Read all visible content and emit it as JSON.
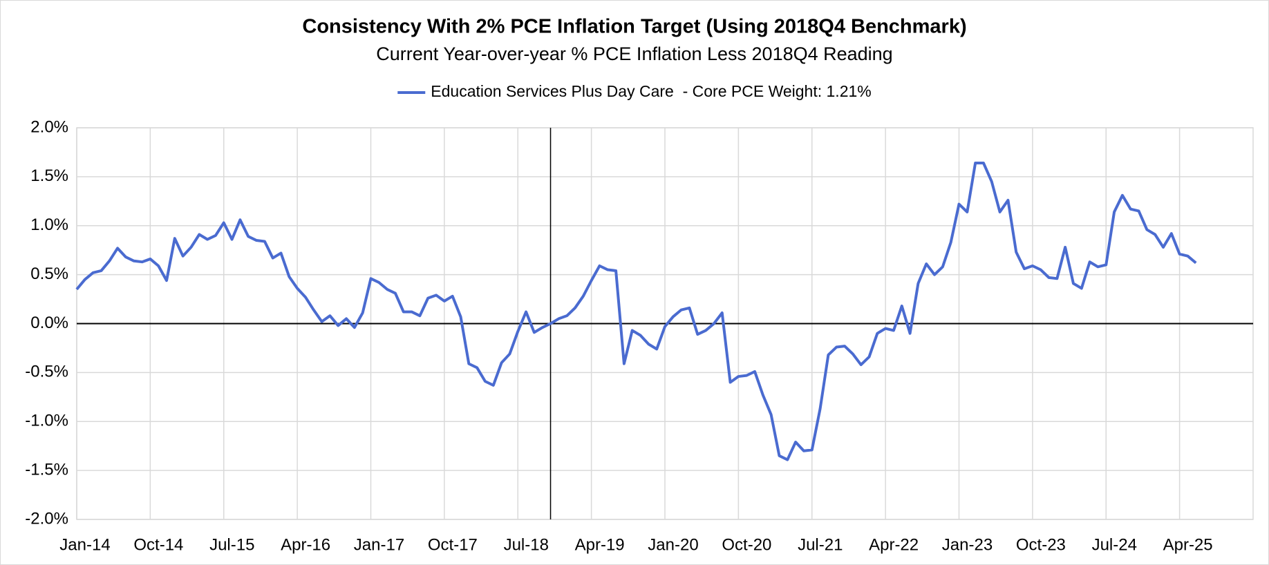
{
  "chart_data": {
    "type": "line",
    "title": "Consistency With 2% PCE Inflation Target (Using 2018Q4 Benchmark)",
    "subtitle": "Current Year-over-year % PCE Inflation Less 2018Q4 Reading",
    "legend": "top",
    "grid": true,
    "vline_index": 58,
    "categories": [
      "Jan-14",
      null,
      null,
      null,
      null,
      null,
      null,
      null,
      null,
      "Oct-14",
      null,
      null,
      null,
      null,
      null,
      null,
      null,
      null,
      "Jul-15",
      null,
      null,
      null,
      null,
      null,
      null,
      null,
      null,
      "Apr-16",
      null,
      null,
      null,
      null,
      null,
      null,
      null,
      null,
      "Jan-17",
      null,
      null,
      null,
      null,
      null,
      null,
      null,
      null,
      "Oct-17",
      null,
      null,
      null,
      null,
      null,
      null,
      null,
      null,
      "Jul-18",
      null,
      null,
      null,
      null,
      null,
      null,
      null,
      null,
      "Apr-19",
      null,
      null,
      null,
      null,
      null,
      null,
      null,
      null,
      "Jan-20",
      null,
      null,
      null,
      null,
      null,
      null,
      null,
      null,
      "Oct-20",
      null,
      null,
      null,
      null,
      null,
      null,
      null,
      null,
      "Jul-21",
      null,
      null,
      null,
      null,
      null,
      null,
      null,
      null,
      "Apr-22",
      null,
      null,
      null,
      null,
      null,
      null,
      null,
      null,
      "Jan-23",
      null,
      null,
      null,
      null,
      null,
      null,
      null,
      null,
      "Oct-23",
      null,
      null,
      null,
      null,
      null,
      null,
      null,
      null,
      "Jul-24",
      null,
      null,
      null,
      null,
      null,
      null,
      null,
      null,
      "Apr-25",
      null,
      null,
      null,
      null,
      null,
      null,
      null,
      null
    ],
    "series": [
      {
        "name": "Education Services Plus Day Care  - Core PCE Weight: 1.21%",
        "color": "#4a6bd0",
        "values": [
          0.35,
          0.45,
          0.52,
          0.54,
          0.64,
          0.77,
          0.68,
          0.64,
          0.63,
          0.66,
          0.59,
          0.44,
          0.87,
          0.69,
          0.78,
          0.91,
          0.86,
          0.9,
          1.03,
          0.86,
          1.06,
          0.89,
          0.85,
          0.84,
          0.67,
          0.72,
          0.48,
          0.36,
          0.27,
          0.14,
          0.02,
          0.08,
          -0.02,
          0.05,
          -0.04,
          0.11,
          0.46,
          0.42,
          0.35,
          0.31,
          0.12,
          0.12,
          0.08,
          0.26,
          0.29,
          0.23,
          0.28,
          0.07,
          -0.41,
          -0.45,
          -0.59,
          -0.63,
          -0.4,
          -0.31,
          -0.08,
          0.12,
          -0.09,
          -0.04,
          0.0,
          0.05,
          0.08,
          0.16,
          0.28,
          0.44,
          0.59,
          0.55,
          0.54,
          -0.41,
          -0.07,
          -0.12,
          -0.21,
          -0.26,
          -0.03,
          0.07,
          0.14,
          0.16,
          -0.11,
          -0.07,
          0.0,
          0.11,
          -0.6,
          -0.54,
          -0.53,
          -0.49,
          -0.73,
          -0.93,
          -1.35,
          -1.39,
          -1.21,
          -1.3,
          -1.29,
          -0.87,
          -0.32,
          -0.24,
          -0.23,
          -0.31,
          -0.42,
          -0.34,
          -0.1,
          -0.05,
          -0.07,
          0.18,
          -0.1,
          0.41,
          0.61,
          0.5,
          0.58,
          0.83,
          1.22,
          1.14,
          1.64,
          1.64,
          1.45,
          1.14,
          1.26,
          0.73,
          0.56,
          0.59,
          0.55,
          0.47,
          0.46,
          0.78,
          0.41,
          0.36,
          0.63,
          0.58,
          0.6,
          1.14,
          1.31,
          1.17,
          1.15,
          0.96,
          0.91,
          0.78,
          0.92,
          0.71,
          0.69,
          0.62,
          null,
          null,
          null,
          null,
          null,
          null
        ]
      }
    ],
    "ylim": [
      -2,
      2
    ],
    "yticks": [
      {
        "value": -2,
        "label": "-2.0%"
      },
      {
        "value": -1.5,
        "label": "-1.5%"
      },
      {
        "value": -1,
        "label": "-1.0%"
      },
      {
        "value": -0.5,
        "label": "-0.5%"
      },
      {
        "value": 0,
        "label": "0.0%"
      },
      {
        "value": 0.5,
        "label": "0.5%"
      },
      {
        "value": 1,
        "label": "1.0%"
      },
      {
        "value": 1.5,
        "label": "1.5%"
      },
      {
        "value": 2,
        "label": "2.0%"
      }
    ]
  }
}
